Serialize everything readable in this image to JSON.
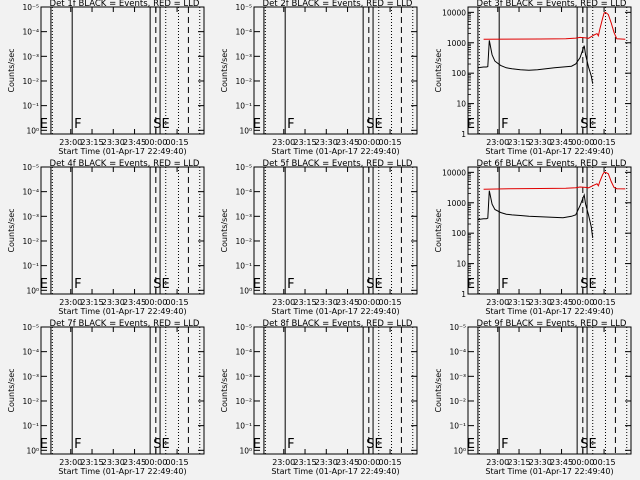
{
  "figure": {
    "background": "#f2f2f2",
    "line_color": "#000000",
    "events_color": "#000000",
    "lld_color": "#e00000"
  },
  "chart_data": [
    {
      "type": "line",
      "detector": "1f",
      "title": "Det 1f BLACK = Events, RED = LLD",
      "ylabel": "Counts/sec",
      "xlabel": "Start Time (01-Apr-17 22:49:40)",
      "x_ticks": [
        "23:00",
        "23:15",
        "23:30",
        "23:45",
        "00:00",
        "00:15"
      ],
      "y_scale": "log",
      "y_ticks": [
        "10⁰",
        "10⁻¹",
        "10⁻²",
        "10⁻³",
        "10⁻⁴",
        "10⁻⁵"
      ],
      "markers": [
        "E",
        "F",
        "SE"
      ],
      "series": []
    },
    {
      "type": "line",
      "detector": "2f",
      "title": "Det 2f BLACK = Events, RED = LLD",
      "ylabel": "Counts/sec",
      "xlabel": "Start Time (01-Apr-17 22:49:40)",
      "x_ticks": [
        "23:00",
        "23:15",
        "23:30",
        "23:45",
        "00:00",
        "00:15"
      ],
      "y_scale": "log",
      "y_ticks": [
        "10⁰",
        "10⁻¹",
        "10⁻²",
        "10⁻³",
        "10⁻⁴",
        "10⁻⁵"
      ],
      "markers": [
        "E",
        "F",
        "SE"
      ],
      "series": []
    },
    {
      "type": "line",
      "detector": "3f",
      "title": "Det 3f BLACK = Events, RED = LLD",
      "ylabel": "Counts/sec",
      "xlabel": "Start Time (01-Apr-17 22:49:40)",
      "x_ticks": [
        "23:00",
        "23:15",
        "23:30",
        "23:45",
        "00:00",
        "00:15"
      ],
      "y_scale": "log",
      "y_ticks": [
        "1",
        "10",
        "100",
        "1000",
        "10000"
      ],
      "markers": [
        "E",
        "F",
        "SE"
      ],
      "series": [
        {
          "color": "lld",
          "values": [
            [
              -10,
              1300
            ],
            [
              8,
              1320
            ],
            [
              30,
              1330
            ],
            [
              48,
              1350
            ],
            [
              55,
              1420
            ],
            [
              58,
              1500
            ],
            [
              62,
              1450
            ],
            [
              64,
              1400
            ],
            [
              68,
              1800
            ],
            [
              70,
              2000
            ],
            [
              71,
              1700
            ],
            [
              72,
              2800
            ],
            [
              74,
              6500
            ],
            [
              75,
              9500
            ],
            [
              76,
              10000
            ],
            [
              78,
              8500
            ],
            [
              80,
              4500
            ],
            [
              82,
              2200
            ],
            [
              84,
              1350
            ],
            [
              90,
              1300
            ]
          ]
        },
        {
          "color": "events",
          "values": [
            [
              -14,
              150
            ],
            [
              -12,
              155
            ],
            [
              -10,
              160
            ],
            [
              -8,
              160
            ],
            [
              -7,
              165
            ],
            [
              -6,
              1200
            ],
            [
              -4,
              400
            ],
            [
              -2,
              250
            ],
            [
              2,
              180
            ],
            [
              6,
              150
            ],
            [
              10,
              140
            ],
            [
              16,
              130
            ],
            [
              22,
              125
            ],
            [
              28,
              130
            ],
            [
              34,
              140
            ],
            [
              40,
              150
            ],
            [
              46,
              160
            ],
            [
              52,
              170
            ],
            [
              55,
              200
            ],
            [
              58,
              320
            ],
            [
              61,
              800
            ],
            [
              62,
              400
            ],
            [
              64,
              160
            ],
            [
              66,
              80
            ],
            [
              67,
              45
            ]
          ]
        }
      ]
    },
    {
      "type": "line",
      "detector": "4f",
      "title": "Det 4f BLACK = Events, RED = LLD",
      "ylabel": "Counts/sec",
      "xlabel": "Start Time (01-Apr-17 22:49:40)",
      "x_ticks": [
        "23:00",
        "23:15",
        "23:30",
        "23:45",
        "00:00",
        "00:15"
      ],
      "y_scale": "log",
      "y_ticks": [
        "10⁰",
        "10⁻¹",
        "10⁻²",
        "10⁻³",
        "10⁻⁴",
        "10⁻⁵"
      ],
      "markers": [
        "E",
        "F",
        "SE"
      ],
      "series": []
    },
    {
      "type": "line",
      "detector": "5f",
      "title": "Det 5f BLACK = Events, RED = LLD",
      "ylabel": "Counts/sec",
      "xlabel": "Start Time (01-Apr-17 22:49:40)",
      "x_ticks": [
        "23:00",
        "23:15",
        "23:30",
        "23:45",
        "00:00",
        "00:15"
      ],
      "y_scale": "log",
      "y_ticks": [
        "10⁰",
        "10⁻¹",
        "10⁻²",
        "10⁻³",
        "10⁻⁴",
        "10⁻⁵"
      ],
      "markers": [
        "E",
        "F",
        "SE"
      ],
      "series": []
    },
    {
      "type": "line",
      "detector": "6f",
      "title": "Det 6f BLACK = Events, RED = LLD",
      "ylabel": "Counts/sec",
      "xlabel": "Start Time (01-Apr-17 22:49:40)",
      "x_ticks": [
        "23:00",
        "23:15",
        "23:30",
        "23:45",
        "00:00",
        "00:15"
      ],
      "y_scale": "log",
      "y_ticks": [
        "1",
        "10",
        "100",
        "1000",
        "10000"
      ],
      "markers": [
        "E",
        "F",
        "SE"
      ],
      "series": [
        {
          "color": "lld",
          "values": [
            [
              -10,
              2800
            ],
            [
              8,
              2900
            ],
            [
              30,
              2950
            ],
            [
              48,
              3000
            ],
            [
              55,
              3100
            ],
            [
              58,
              3300
            ],
            [
              62,
              3200
            ],
            [
              64,
              3100
            ],
            [
              68,
              3800
            ],
            [
              70,
              4200
            ],
            [
              71,
              3600
            ],
            [
              72,
              5000
            ],
            [
              74,
              8500
            ],
            [
              75,
              10000
            ],
            [
              76,
              10000
            ],
            [
              78,
              9000
            ],
            [
              80,
              5000
            ],
            [
              82,
              3200
            ],
            [
              84,
              2900
            ],
            [
              90,
              2850
            ]
          ]
        },
        {
          "color": "events",
          "values": [
            [
              -14,
              280
            ],
            [
              -12,
              290
            ],
            [
              -10,
              300
            ],
            [
              -8,
              300
            ],
            [
              -7,
              310
            ],
            [
              -6,
              2500
            ],
            [
              -4,
              900
            ],
            [
              -2,
              600
            ],
            [
              2,
              480
            ],
            [
              6,
              420
            ],
            [
              10,
              400
            ],
            [
              16,
              380
            ],
            [
              22,
              360
            ],
            [
              28,
              350
            ],
            [
              34,
              340
            ],
            [
              40,
              330
            ],
            [
              46,
              320
            ],
            [
              52,
              360
            ],
            [
              55,
              400
            ],
            [
              58,
              800
            ],
            [
              61,
              1800
            ],
            [
              62,
              900
            ],
            [
              64,
              400
            ],
            [
              66,
              160
            ],
            [
              67,
              70
            ]
          ]
        }
      ]
    },
    {
      "type": "line",
      "detector": "7f",
      "title": "Det 7f BLACK = Events, RED = LLD",
      "ylabel": "Counts/sec",
      "xlabel": "Start Time (01-Apr-17 22:49:40)",
      "x_ticks": [
        "23:00",
        "23:15",
        "23:30",
        "23:45",
        "00:00",
        "00:15"
      ],
      "y_scale": "log",
      "y_ticks": [
        "10⁰",
        "10⁻¹",
        "10⁻²",
        "10⁻³",
        "10⁻⁴",
        "10⁻⁵"
      ],
      "markers": [
        "E",
        "F",
        "SE"
      ],
      "series": []
    },
    {
      "type": "line",
      "detector": "8f",
      "title": "Det 8f BLACK = Events, RED = LLD",
      "ylabel": "Counts/sec",
      "xlabel": "Start Time (01-Apr-17 22:49:40)",
      "x_ticks": [
        "23:00",
        "23:15",
        "23:30",
        "23:45",
        "00:00",
        "00:15"
      ],
      "y_scale": "log",
      "y_ticks": [
        "10⁰",
        "10⁻¹",
        "10⁻²",
        "10⁻³",
        "10⁻⁴",
        "10⁻⁵"
      ],
      "markers": [
        "E",
        "F",
        "SE"
      ],
      "series": []
    },
    {
      "type": "line",
      "detector": "9f",
      "title": "Det 9f BLACK = Events, RED = LLD",
      "ylabel": "Counts/sec",
      "xlabel": "Start Time (01-Apr-17 22:49:40)",
      "x_ticks": [
        "23:00",
        "23:15",
        "23:30",
        "23:45",
        "00:00",
        "00:15"
      ],
      "y_scale": "log",
      "y_ticks": [
        "10⁰",
        "10⁻¹",
        "10⁻²",
        "10⁻³",
        "10⁻⁴",
        "10⁻⁵"
      ],
      "markers": [
        "E",
        "F",
        "SE"
      ],
      "series": []
    }
  ]
}
